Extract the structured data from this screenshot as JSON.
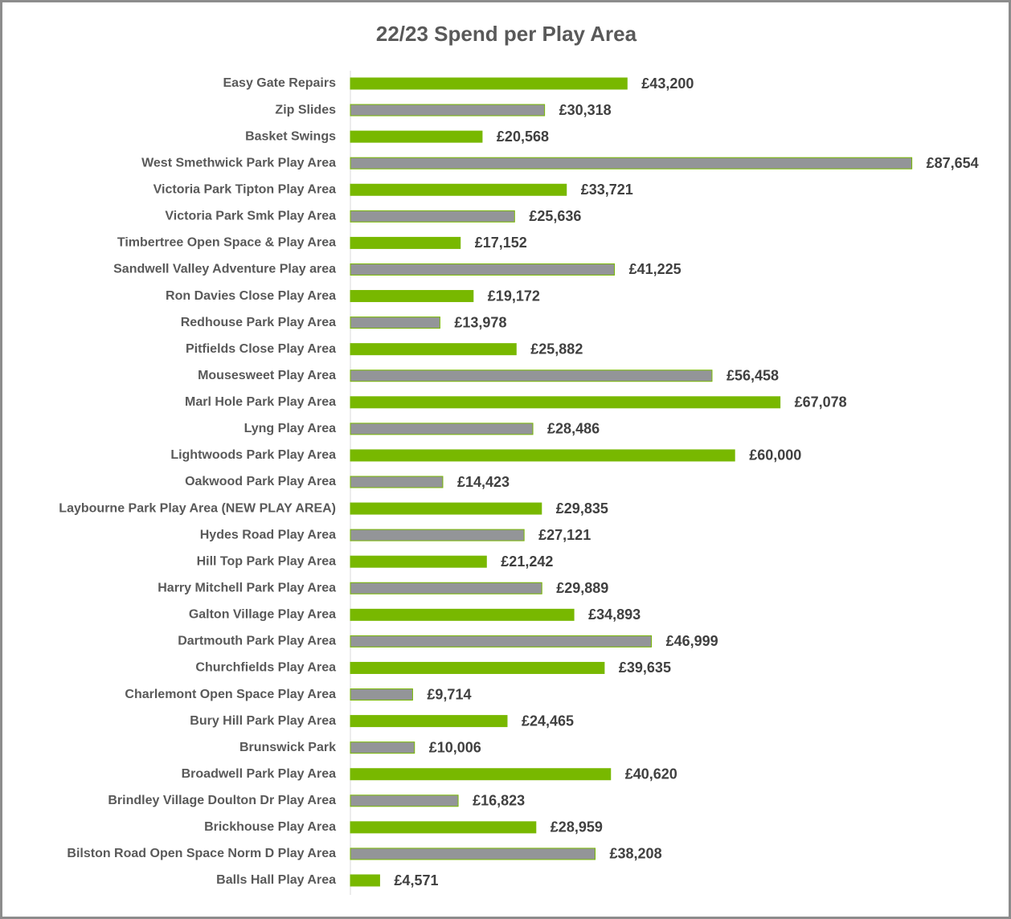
{
  "chart_data": {
    "type": "barh",
    "title": "22/23 Spend per Play Area",
    "categories": [
      "Easy Gate Repairs",
      "Zip Slides",
      "Basket Swings",
      "West Smethwick Park Play Area",
      "Victoria Park Tipton Play Area",
      "Victoria Park Smk Play Area",
      "Timbertree Open Space & Play Area",
      "Sandwell Valley Adventure Play area",
      "Ron Davies Close Play Area",
      "Redhouse Park Play Area",
      "Pitfields Close Play Area",
      "Mousesweet Play Area",
      "Marl Hole Park Play Area",
      "Lyng Play Area",
      "Lightwoods Park Play Area",
      "Oakwood Park Play Area",
      "Laybourne Park Play Area (NEW PLAY AREA)",
      "Hydes Road Play Area",
      "Hill Top Park Play Area",
      "Harry Mitchell Park Play Area",
      "Galton Village Play Area",
      "Dartmouth Park Play Area",
      "Churchfields Play Area",
      "Charlemont Open Space Play Area",
      "Bury Hill Park Play Area",
      "Brunswick Park",
      "Broadwell Park Play Area",
      "Brindley Village Doulton Dr Play Area",
      "Brickhouse Play Area",
      "Bilston Road Open Space Norm D Play Area",
      "Balls Hall Play Area"
    ],
    "values": [
      43200,
      30318,
      20568,
      87654,
      33721,
      25636,
      17152,
      41225,
      19172,
      13978,
      25882,
      56458,
      67078,
      28486,
      60000,
      14423,
      29835,
      27121,
      21242,
      29889,
      34893,
      46999,
      39635,
      9714,
      24465,
      10006,
      40620,
      16823,
      28959,
      38208,
      4571
    ],
    "value_labels": [
      "£43,200",
      "£30,318",
      "£20,568",
      "£87,654",
      "£33,721",
      "£25,636",
      "£17,152",
      "£41,225",
      "£19,172",
      "£13,978",
      "£25,882",
      "£56,458",
      "£67,078",
      "£28,486",
      "£60,000",
      "£14,423",
      "£29,835",
      "£27,121",
      "£21,242",
      "£29,889",
      "£34,893",
      "£46,999",
      "£39,635",
      "£9,714",
      "£24,465",
      "£10,006",
      "£40,620",
      "£16,823",
      "£28,959",
      "£38,208",
      "£4,571"
    ],
    "colors": [
      "#78b800",
      "#939598"
    ],
    "edgecolor": "#78b800",
    "xlim": [
      0,
      100000
    ]
  }
}
